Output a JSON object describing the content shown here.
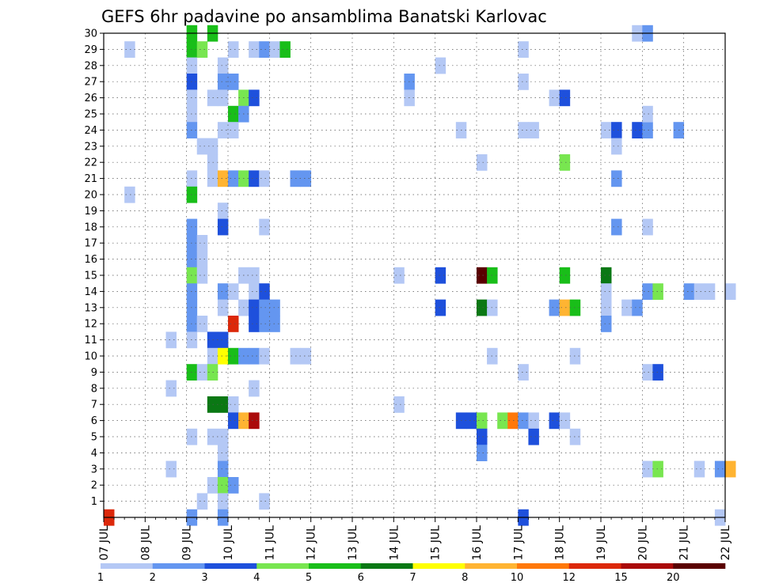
{
  "chart_data": {
    "type": "heatmap",
    "title": "GEFS 6hr padavine po ansamblima Banatski Karlovac",
    "x_tick_labels": [
      "07 JUL",
      "08 JUL",
      "09 JUL",
      "10 JUL",
      "11 JUL",
      "12 JUL",
      "13 JUL",
      "14 JUL",
      "15 JUL",
      "16 JUL",
      "17 JUL",
      "18 JUL",
      "19 JUL",
      "20 JUL",
      "21 JUL",
      "22 JUL"
    ],
    "y_tick_labels": [
      "1",
      "2",
      "3",
      "4",
      "5",
      "6",
      "7",
      "8",
      "9",
      "10",
      "11",
      "12",
      "13",
      "14",
      "15",
      "16",
      "17",
      "18",
      "19",
      "20",
      "21",
      "22",
      "23",
      "24",
      "25",
      "26",
      "27",
      "28",
      "29",
      "30"
    ],
    "x_range": [
      "07 JUL 00Z",
      "22 JUL 00Z"
    ],
    "y_range": [
      0,
      30
    ],
    "grid": true,
    "legend": {
      "placement": "bottom",
      "labels": [
        "1",
        "2",
        "3",
        "4",
        "5",
        "6",
        "7",
        "8",
        "10",
        "12",
        "15",
        "20"
      ],
      "colors": [
        "#b4c8f5",
        "#6496f0",
        "#1e50dc",
        "#78e650",
        "#19be19",
        "#0a7814",
        "#ffff00",
        "#ffb432",
        "#ff780a",
        "#dc280a",
        "#aa0a0a",
        "#5a0000"
      ]
    },
    "cells": [
      {
        "t": 0,
        "m": 0,
        "c": 9
      },
      {
        "t": 2,
        "m": 29,
        "c": 0
      },
      {
        "t": 2,
        "m": 20,
        "c": 0
      },
      {
        "t": 6,
        "m": 11,
        "c": 0
      },
      {
        "t": 6,
        "m": 8,
        "c": 0
      },
      {
        "t": 6,
        "m": 3,
        "c": 0
      },
      {
        "t": 8,
        "m": 30,
        "c": 4
      },
      {
        "t": 8,
        "m": 29,
        "c": 4
      },
      {
        "t": 8,
        "m": 28,
        "c": 0
      },
      {
        "t": 8,
        "m": 27,
        "c": 2
      },
      {
        "t": 8,
        "m": 26,
        "c": 0
      },
      {
        "t": 8,
        "m": 25,
        "c": 0
      },
      {
        "t": 8,
        "m": 24,
        "c": 1
      },
      {
        "t": 8,
        "m": 21,
        "c": 0
      },
      {
        "t": 8,
        "m": 20,
        "c": 4
      },
      {
        "t": 8,
        "m": 18,
        "c": 1
      },
      {
        "t": 8,
        "m": 17,
        "c": 1
      },
      {
        "t": 8,
        "m": 16,
        "c": 1
      },
      {
        "t": 8,
        "m": 15,
        "c": 3
      },
      {
        "t": 8,
        "m": 14,
        "c": 1
      },
      {
        "t": 8,
        "m": 13,
        "c": 1
      },
      {
        "t": 8,
        "m": 12,
        "c": 1
      },
      {
        "t": 8,
        "m": 11,
        "c": 0
      },
      {
        "t": 8,
        "m": 9,
        "c": 4
      },
      {
        "t": 8,
        "m": 5,
        "c": 0
      },
      {
        "t": 8,
        "m": 0,
        "c": 1
      },
      {
        "t": 9,
        "m": 29,
        "c": 3
      },
      {
        "t": 9,
        "m": 23,
        "c": 0
      },
      {
        "t": 9,
        "m": 17,
        "c": 0
      },
      {
        "t": 9,
        "m": 16,
        "c": 0
      },
      {
        "t": 9,
        "m": 15,
        "c": 0
      },
      {
        "t": 9,
        "m": 12,
        "c": 0
      },
      {
        "t": 9,
        "m": 9,
        "c": 0
      },
      {
        "t": 9,
        "m": 1,
        "c": 0
      },
      {
        "t": 10,
        "m": 30,
        "c": 4
      },
      {
        "t": 10,
        "m": 26,
        "c": 0
      },
      {
        "t": 10,
        "m": 23,
        "c": 0
      },
      {
        "t": 10,
        "m": 22,
        "c": 0
      },
      {
        "t": 10,
        "m": 21,
        "c": 0
      },
      {
        "t": 10,
        "m": 11,
        "c": 2
      },
      {
        "t": 10,
        "m": 10,
        "c": 0
      },
      {
        "t": 10,
        "m": 9,
        "c": 3
      },
      {
        "t": 10,
        "m": 7,
        "c": 5
      },
      {
        "t": 10,
        "m": 5,
        "c": 0
      },
      {
        "t": 10,
        "m": 2,
        "c": 0
      },
      {
        "t": 11,
        "m": 28,
        "c": 0
      },
      {
        "t": 11,
        "m": 27,
        "c": 1
      },
      {
        "t": 11,
        "m": 26,
        "c": 0
      },
      {
        "t": 11,
        "m": 24,
        "c": 0
      },
      {
        "t": 11,
        "m": 21,
        "c": 7
      },
      {
        "t": 11,
        "m": 19,
        "c": 0
      },
      {
        "t": 11,
        "m": 18,
        "c": 2
      },
      {
        "t": 11,
        "m": 14,
        "c": 1
      },
      {
        "t": 11,
        "m": 13,
        "c": 0
      },
      {
        "t": 11,
        "m": 11,
        "c": 2
      },
      {
        "t": 11,
        "m": 10,
        "c": 6
      },
      {
        "t": 11,
        "m": 7,
        "c": 5
      },
      {
        "t": 11,
        "m": 5,
        "c": 0
      },
      {
        "t": 11,
        "m": 4,
        "c": 0
      },
      {
        "t": 11,
        "m": 3,
        "c": 1
      },
      {
        "t": 11,
        "m": 2,
        "c": 3
      },
      {
        "t": 11,
        "m": 1,
        "c": 0
      },
      {
        "t": 11,
        "m": 0,
        "c": 1
      },
      {
        "t": 12,
        "m": 29,
        "c": 0
      },
      {
        "t": 12,
        "m": 27,
        "c": 1
      },
      {
        "t": 12,
        "m": 25,
        "c": 4
      },
      {
        "t": 12,
        "m": 24,
        "c": 0
      },
      {
        "t": 12,
        "m": 21,
        "c": 1
      },
      {
        "t": 12,
        "m": 14,
        "c": 0
      },
      {
        "t": 12,
        "m": 12,
        "c": 9
      },
      {
        "t": 12,
        "m": 10,
        "c": 4
      },
      {
        "t": 12,
        "m": 7,
        "c": 0
      },
      {
        "t": 12,
        "m": 6,
        "c": 2
      },
      {
        "t": 12,
        "m": 2,
        "c": 1
      },
      {
        "t": 13,
        "m": 26,
        "c": 3
      },
      {
        "t": 13,
        "m": 25,
        "c": 1
      },
      {
        "t": 13,
        "m": 21,
        "c": 3
      },
      {
        "t": 13,
        "m": 15,
        "c": 0
      },
      {
        "t": 13,
        "m": 13,
        "c": 0
      },
      {
        "t": 13,
        "m": 10,
        "c": 1
      },
      {
        "t": 13,
        "m": 6,
        "c": 7
      },
      {
        "t": 14,
        "m": 29,
        "c": 0
      },
      {
        "t": 14,
        "m": 26,
        "c": 2
      },
      {
        "t": 14,
        "m": 21,
        "c": 2
      },
      {
        "t": 14,
        "m": 15,
        "c": 0
      },
      {
        "t": 14,
        "m": 14,
        "c": 0
      },
      {
        "t": 14,
        "m": 13,
        "c": 2
      },
      {
        "t": 14,
        "m": 12,
        "c": 2
      },
      {
        "t": 14,
        "m": 10,
        "c": 1
      },
      {
        "t": 14,
        "m": 8,
        "c": 0
      },
      {
        "t": 14,
        "m": 6,
        "c": 10
      },
      {
        "t": 15,
        "m": 29,
        "c": 1
      },
      {
        "t": 15,
        "m": 21,
        "c": 0
      },
      {
        "t": 15,
        "m": 18,
        "c": 0
      },
      {
        "t": 15,
        "m": 14,
        "c": 2
      },
      {
        "t": 15,
        "m": 13,
        "c": 1
      },
      {
        "t": 15,
        "m": 12,
        "c": 1
      },
      {
        "t": 15,
        "m": 10,
        "c": 0
      },
      {
        "t": 15,
        "m": 1,
        "c": 0
      },
      {
        "t": 16,
        "m": 29,
        "c": 0
      },
      {
        "t": 16,
        "m": 13,
        "c": 1
      },
      {
        "t": 16,
        "m": 12,
        "c": 1
      },
      {
        "t": 17,
        "m": 29,
        "c": 4
      },
      {
        "t": 18,
        "m": 21,
        "c": 1
      },
      {
        "t": 18,
        "m": 10,
        "c": 0
      },
      {
        "t": 19,
        "m": 21,
        "c": 1
      },
      {
        "t": 19,
        "m": 10,
        "c": 0
      },
      {
        "t": 28,
        "m": 15,
        "c": 0
      },
      {
        "t": 28,
        "m": 7,
        "c": 0
      },
      {
        "t": 29,
        "m": 27,
        "c": 1
      },
      {
        "t": 29,
        "m": 26,
        "c": 0
      },
      {
        "t": 32,
        "m": 28,
        "c": 0
      },
      {
        "t": 32,
        "m": 15,
        "c": 2
      },
      {
        "t": 32,
        "m": 13,
        "c": 2
      },
      {
        "t": 34,
        "m": 24,
        "c": 0
      },
      {
        "t": 34,
        "m": 6,
        "c": 2
      },
      {
        "t": 35,
        "m": 6,
        "c": 2
      },
      {
        "t": 36,
        "m": 22,
        "c": 0
      },
      {
        "t": 36,
        "m": 15,
        "c": 11
      },
      {
        "t": 36,
        "m": 13,
        "c": 5
      },
      {
        "t": 36,
        "m": 6,
        "c": 3
      },
      {
        "t": 36,
        "m": 5,
        "c": 2
      },
      {
        "t": 36,
        "m": 4,
        "c": 1
      },
      {
        "t": 37,
        "m": 15,
        "c": 4
      },
      {
        "t": 37,
        "m": 13,
        "c": 0
      },
      {
        "t": 37,
        "m": 10,
        "c": 0
      },
      {
        "t": 38,
        "m": 6,
        "c": 3
      },
      {
        "t": 39,
        "m": 6,
        "c": 8
      },
      {
        "t": 40,
        "m": 29,
        "c": 0
      },
      {
        "t": 40,
        "m": 27,
        "c": 0
      },
      {
        "t": 40,
        "m": 24,
        "c": 0
      },
      {
        "t": 40,
        "m": 9,
        "c": 0
      },
      {
        "t": 40,
        "m": 6,
        "c": 1
      },
      {
        "t": 40,
        "m": 0,
        "c": 2
      },
      {
        "t": 41,
        "m": 24,
        "c": 0
      },
      {
        "t": 41,
        "m": 6,
        "c": 0
      },
      {
        "t": 41,
        "m": 5,
        "c": 2
      },
      {
        "t": 43,
        "m": 26,
        "c": 0
      },
      {
        "t": 43,
        "m": 13,
        "c": 1
      },
      {
        "t": 43,
        "m": 6,
        "c": 2
      },
      {
        "t": 44,
        "m": 26,
        "c": 2
      },
      {
        "t": 44,
        "m": 22,
        "c": 3
      },
      {
        "t": 44,
        "m": 15,
        "c": 4
      },
      {
        "t": 44,
        "m": 13,
        "c": 7
      },
      {
        "t": 44,
        "m": 6,
        "c": 0
      },
      {
        "t": 45,
        "m": 13,
        "c": 4
      },
      {
        "t": 45,
        "m": 10,
        "c": 0
      },
      {
        "t": 45,
        "m": 5,
        "c": 0
      },
      {
        "t": 48,
        "m": 24,
        "c": 0
      },
      {
        "t": 48,
        "m": 15,
        "c": 5
      },
      {
        "t": 48,
        "m": 14,
        "c": 0
      },
      {
        "t": 48,
        "m": 13,
        "c": 0
      },
      {
        "t": 48,
        "m": 12,
        "c": 1
      },
      {
        "t": 49,
        "m": 24,
        "c": 2
      },
      {
        "t": 49,
        "m": 23,
        "c": 0
      },
      {
        "t": 49,
        "m": 21,
        "c": 1
      },
      {
        "t": 49,
        "m": 18,
        "c": 1
      },
      {
        "t": 50,
        "m": 13,
        "c": 0
      },
      {
        "t": 51,
        "m": 30,
        "c": 0
      },
      {
        "t": 51,
        "m": 24,
        "c": 2
      },
      {
        "t": 51,
        "m": 13,
        "c": 1
      },
      {
        "t": 52,
        "m": 30,
        "c": 1
      },
      {
        "t": 52,
        "m": 24,
        "c": 1
      },
      {
        "t": 52,
        "m": 25,
        "c": 0
      },
      {
        "t": 52,
        "m": 18,
        "c": 0
      },
      {
        "t": 52,
        "m": 14,
        "c": 1
      },
      {
        "t": 52,
        "m": 9,
        "c": 0
      },
      {
        "t": 52,
        "m": 3,
        "c": 0
      },
      {
        "t": 53,
        "m": 14,
        "c": 3
      },
      {
        "t": 53,
        "m": 9,
        "c": 2
      },
      {
        "t": 53,
        "m": 3,
        "c": 3
      },
      {
        "t": 55,
        "m": 24,
        "c": 1
      },
      {
        "t": 56,
        "m": 14,
        "c": 1
      },
      {
        "t": 57,
        "m": 14,
        "c": 0
      },
      {
        "t": 57,
        "m": 3,
        "c": 0
      },
      {
        "t": 58,
        "m": 14,
        "c": 0
      },
      {
        "t": 59,
        "m": 3,
        "c": 1
      },
      {
        "t": 59,
        "m": 0,
        "c": 0
      },
      {
        "t": 60,
        "m": 14,
        "c": 0
      },
      {
        "t": 60,
        "m": 3,
        "c": 7
      }
    ]
  }
}
